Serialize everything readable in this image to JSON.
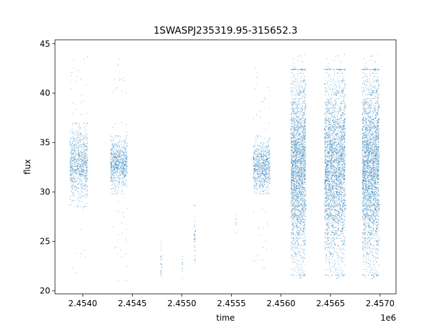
{
  "chart_data": {
    "type": "scatter",
    "title": "1SWASPJ235319.95-315652.3",
    "xlabel": "time",
    "ylabel": "flux",
    "x_offset_label": "1e6",
    "xlim": [
      2453720,
      2457160
    ],
    "ylim": [
      19.7,
      45.4
    ],
    "xticks": [
      2454000,
      2454500,
      2455000,
      2455500,
      2456000,
      2456500,
      2457000
    ],
    "xtick_labels": [
      "2.4540",
      "2.4545",
      "2.4550",
      "2.4555",
      "2.4560",
      "2.4565",
      "2.4570"
    ],
    "yticks": [
      20,
      25,
      30,
      35,
      40,
      45
    ],
    "ytick_labels": [
      "20",
      "25",
      "30",
      "35",
      "40",
      "45"
    ],
    "grid": false,
    "marker_color": "#1f77b4",
    "clusters": [
      {
        "x_range": [
          2453870,
          2454050
        ],
        "core": [
          29.5,
          36.0
        ],
        "center": 32.8,
        "outliers": [
          21.5,
          44.0
        ],
        "points": 900
      },
      {
        "x_range": [
          2454280,
          2454450
        ],
        "core": [
          30.5,
          35.0
        ],
        "center": 32.8,
        "outliers": [
          21.0,
          43.5
        ],
        "points": 800
      },
      {
        "x_range": [
          2454780,
          2454800
        ],
        "core": [
          22.0,
          24.8
        ],
        "center": 23.0,
        "outliers": [
          21.0,
          24.8
        ],
        "points": 30
      },
      {
        "x_range": [
          2455000,
          2455010
        ],
        "core": [
          21.5,
          23.5
        ],
        "center": 22.5,
        "outliers": [
          21.2,
          23.5
        ],
        "points": 12
      },
      {
        "x_range": [
          2455120,
          2455140
        ],
        "core": [
          23.5,
          28.0
        ],
        "center": 25.5,
        "outliers": [
          23.5,
          28.0
        ],
        "points": 45
      },
      {
        "x_range": [
          2455540,
          2455550
        ],
        "core": [
          26.0,
          27.5
        ],
        "center": 26.8,
        "outliers": [
          26.0,
          27.5
        ],
        "points": 8
      },
      {
        "x_range": [
          2455720,
          2455890
        ],
        "core": [
          30.5,
          35.0
        ],
        "center": 32.5,
        "outliers": [
          22.0,
          43.0
        ],
        "points": 800
      },
      {
        "x_range": [
          2456100,
          2456250
        ],
        "core": [
          24.0,
          40.0
        ],
        "center": 32.5,
        "outliers": [
          21.0,
          44.0
        ],
        "points": 2600
      },
      {
        "x_range": [
          2456440,
          2456650
        ],
        "core": [
          24.0,
          40.0
        ],
        "center": 32.5,
        "outliers": [
          21.0,
          44.0
        ],
        "points": 3200
      },
      {
        "x_range": [
          2456820,
          2456990
        ],
        "core": [
          24.0,
          40.0
        ],
        "center": 32.5,
        "outliers": [
          21.0,
          44.0
        ],
        "points": 3000
      }
    ]
  }
}
